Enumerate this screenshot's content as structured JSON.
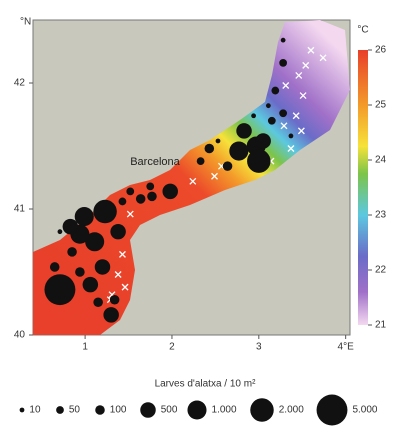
{
  "map": {
    "xlim": [
      0.4,
      4.05
    ],
    "ylim": [
      40,
      42.5
    ],
    "xticks": [
      1,
      2,
      3,
      {
        "value": 4,
        "label": "4°E"
      }
    ],
    "yticks": [
      40,
      41,
      42
    ],
    "y_unit": "°N",
    "place_label": "Barcelona",
    "colorbar": {
      "unit": "°C",
      "lim": [
        21,
        26
      ],
      "ticks": [
        21,
        22,
        23,
        24,
        25,
        26
      ]
    },
    "samples": [
      {
        "lon": 0.71,
        "lat": 40.36,
        "value": 5000
      },
      {
        "lon": 1.23,
        "lat": 40.98,
        "value": 2000
      },
      {
        "lon": 0.99,
        "lat": 40.94,
        "value": 1000
      },
      {
        "lon": 0.94,
        "lat": 40.8,
        "value": 1000
      },
      {
        "lon": 1.11,
        "lat": 40.74,
        "value": 1000
      },
      {
        "lon": 1.38,
        "lat": 40.82,
        "value": 500
      },
      {
        "lon": 0.83,
        "lat": 40.86,
        "value": 500
      },
      {
        "lon": 1.3,
        "lat": 40.16,
        "value": 500
      },
      {
        "lon": 1.06,
        "lat": 40.4,
        "value": 500
      },
      {
        "lon": 1.2,
        "lat": 40.54,
        "value": 500
      },
      {
        "lon": 1.98,
        "lat": 41.14,
        "value": 500
      },
      {
        "lon": 2.83,
        "lat": 41.62,
        "value": 500
      },
      {
        "lon": 2.97,
        "lat": 41.5,
        "value": 1000
      },
      {
        "lon": 3.0,
        "lat": 41.38,
        "value": 2000
      },
      {
        "lon": 2.77,
        "lat": 41.46,
        "value": 1000
      },
      {
        "lon": 3.05,
        "lat": 41.54,
        "value": 500
      },
      {
        "lon": 1.77,
        "lat": 41.1,
        "value": 100
      },
      {
        "lon": 0.85,
        "lat": 40.66,
        "value": 100
      },
      {
        "lon": 0.65,
        "lat": 40.54,
        "value": 100
      },
      {
        "lon": 0.94,
        "lat": 40.5,
        "value": 100
      },
      {
        "lon": 1.34,
        "lat": 40.28,
        "value": 100
      },
      {
        "lon": 1.15,
        "lat": 40.26,
        "value": 100
      },
      {
        "lon": 1.64,
        "lat": 41.08,
        "value": 100
      },
      {
        "lon": 2.43,
        "lat": 41.48,
        "value": 100
      },
      {
        "lon": 2.64,
        "lat": 41.34,
        "value": 100
      },
      {
        "lon": 3.15,
        "lat": 41.7,
        "value": 50
      },
      {
        "lon": 3.28,
        "lat": 41.76,
        "value": 50
      },
      {
        "lon": 3.19,
        "lat": 41.94,
        "value": 50
      },
      {
        "lon": 3.28,
        "lat": 42.16,
        "value": 50
      },
      {
        "lon": 1.52,
        "lat": 41.14,
        "value": 50
      },
      {
        "lon": 1.43,
        "lat": 41.06,
        "value": 50
      },
      {
        "lon": 1.75,
        "lat": 41.18,
        "value": 50
      },
      {
        "lon": 2.33,
        "lat": 41.38,
        "value": 50
      },
      {
        "lon": 2.53,
        "lat": 41.54,
        "value": 10
      },
      {
        "lon": 2.94,
        "lat": 41.74,
        "value": 10
      },
      {
        "lon": 3.11,
        "lat": 41.82,
        "value": 10
      },
      {
        "lon": 3.28,
        "lat": 42.34,
        "value": 10
      },
      {
        "lon": 3.37,
        "lat": 41.58,
        "value": 10
      },
      {
        "lon": 0.71,
        "lat": 40.82,
        "value": 10
      },
      {
        "lon": 0.74,
        "lat": 40.3,
        "value": 10
      }
    ],
    "zero_catch": [
      {
        "lon": 3.6,
        "lat": 42.26
      },
      {
        "lon": 3.54,
        "lat": 42.14
      },
      {
        "lon": 3.46,
        "lat": 42.06
      },
      {
        "lon": 3.74,
        "lat": 42.2
      },
      {
        "lon": 3.31,
        "lat": 41.98
      },
      {
        "lon": 3.51,
        "lat": 41.9
      },
      {
        "lon": 3.43,
        "lat": 41.74
      },
      {
        "lon": 3.29,
        "lat": 41.66
      },
      {
        "lon": 3.49,
        "lat": 41.62
      },
      {
        "lon": 3.37,
        "lat": 41.48
      },
      {
        "lon": 3.14,
        "lat": 41.38
      },
      {
        "lon": 2.57,
        "lat": 41.34
      },
      {
        "lon": 2.49,
        "lat": 41.26
      },
      {
        "lon": 2.24,
        "lat": 41.22
      },
      {
        "lon": 1.52,
        "lat": 40.96
      },
      {
        "lon": 1.43,
        "lat": 40.64
      },
      {
        "lon": 1.38,
        "lat": 40.48
      },
      {
        "lon": 1.46,
        "lat": 40.38
      },
      {
        "lon": 1.31,
        "lat": 40.32
      },
      {
        "lon": 1.29,
        "lat": 40.28
      }
    ]
  },
  "legend": {
    "title": "Larves d'alatxa / 10 m²",
    "values": [
      10,
      50,
      100,
      500,
      {
        "value": 1000,
        "label": "1.000"
      },
      {
        "value": 2000,
        "label": "2.000"
      },
      {
        "value": 5000,
        "label": "5.000"
      }
    ]
  }
}
